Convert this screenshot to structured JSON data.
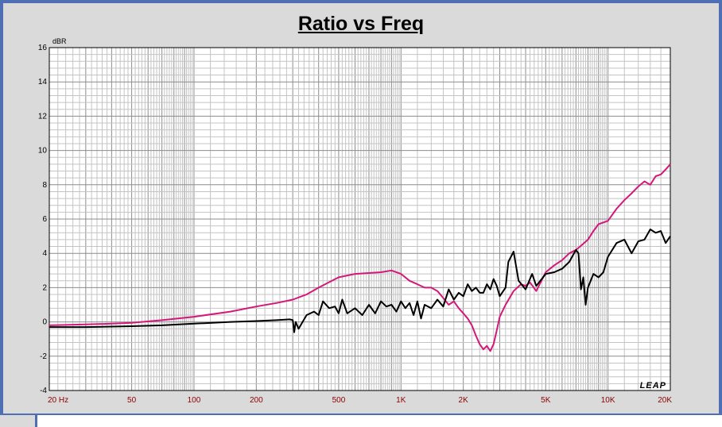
{
  "chart_data": {
    "type": "line",
    "title": "Ratio vs Freq",
    "ylabel": "dBR",
    "xlabel": "",
    "x_scale": "log",
    "xlim": [
      20,
      20000
    ],
    "ylim": [
      -4,
      16
    ],
    "grid": true,
    "brand": "LEAP",
    "y_ticks": [
      "16",
      "14",
      "12",
      "10",
      "8",
      "6",
      "4",
      "2",
      "0",
      "-2",
      "-4"
    ],
    "x_ticks": [
      {
        "value": 20,
        "label": "20  Hz"
      },
      {
        "value": 50,
        "label": "50"
      },
      {
        "value": 100,
        "label": "100"
      },
      {
        "value": 200,
        "label": "200"
      },
      {
        "value": 500,
        "label": "500"
      },
      {
        "value": 1000,
        "label": "1K"
      },
      {
        "value": 2000,
        "label": "2K"
      },
      {
        "value": 5000,
        "label": "5K"
      },
      {
        "value": 10000,
        "label": "10K"
      },
      {
        "value": 20000,
        "label": "20K"
      }
    ],
    "series": [
      {
        "color": "#d4187a",
        "x": [
          20,
          30,
          40,
          50,
          70,
          100,
          150,
          200,
          250,
          300,
          350,
          400,
          500,
          600,
          700,
          800,
          900,
          1000,
          1100,
          1200,
          1300,
          1400,
          1500,
          1600,
          1700,
          1800,
          1900,
          2000,
          2100,
          2200,
          2300,
          2400,
          2500,
          2600,
          2700,
          2800,
          2900,
          3000,
          3200,
          3500,
          3800,
          4000,
          4200,
          4500,
          5000,
          5500,
          6000,
          6500,
          7000,
          7500,
          8000,
          8500,
          9000,
          10000,
          11000,
          12000,
          13000,
          14000,
          15000,
          16000,
          17000,
          18000,
          19000,
          20000
        ],
        "y": [
          -0.2,
          -0.15,
          -0.1,
          -0.05,
          0.1,
          0.3,
          0.6,
          0.9,
          1.1,
          1.3,
          1.6,
          2.0,
          2.6,
          2.8,
          2.85,
          2.9,
          3.0,
          2.8,
          2.4,
          2.2,
          2.0,
          2.0,
          1.8,
          1.4,
          1.0,
          1.2,
          0.8,
          0.5,
          0.2,
          -0.2,
          -0.8,
          -1.3,
          -1.6,
          -1.4,
          -1.7,
          -1.3,
          -0.5,
          0.3,
          1.0,
          1.8,
          2.2,
          2.1,
          2.3,
          1.8,
          2.9,
          3.3,
          3.6,
          4.0,
          4.2,
          4.5,
          4.8,
          5.3,
          5.7,
          5.9,
          6.6,
          7.1,
          7.5,
          7.9,
          8.2,
          8.0,
          8.5,
          8.6,
          8.9,
          9.2
        ]
      },
      {
        "color": "#000000",
        "x": [
          20,
          30,
          50,
          70,
          100,
          150,
          200,
          250,
          290,
          300,
          305,
          310,
          320,
          350,
          380,
          400,
          420,
          450,
          480,
          500,
          520,
          550,
          600,
          650,
          700,
          750,
          800,
          850,
          900,
          950,
          1000,
          1050,
          1100,
          1150,
          1200,
          1250,
          1300,
          1400,
          1500,
          1600,
          1700,
          1800,
          1900,
          2000,
          2100,
          2200,
          2300,
          2400,
          2500,
          2600,
          2700,
          2800,
          2900,
          3000,
          3200,
          3300,
          3500,
          3700,
          4000,
          4300,
          4500,
          5000,
          5500,
          6000,
          6500,
          7000,
          7200,
          7400,
          7600,
          7800,
          8000,
          8500,
          9000,
          9500,
          10000,
          11000,
          12000,
          13000,
          14000,
          15000,
          16000,
          17000,
          18000,
          19000,
          20000
        ],
        "y": [
          -0.3,
          -0.3,
          -0.25,
          -0.2,
          -0.1,
          0.0,
          0.05,
          0.1,
          0.15,
          0.1,
          -0.6,
          0.0,
          -0.4,
          0.4,
          0.6,
          0.4,
          1.2,
          0.8,
          0.9,
          0.5,
          1.3,
          0.5,
          0.8,
          0.4,
          1.0,
          0.5,
          1.2,
          0.9,
          1.0,
          0.6,
          1.2,
          0.8,
          1.1,
          0.4,
          1.2,
          0.2,
          1.0,
          0.8,
          1.3,
          0.9,
          1.9,
          1.3,
          1.7,
          1.5,
          2.2,
          1.8,
          2.0,
          1.7,
          1.7,
          2.2,
          1.9,
          2.5,
          2.1,
          1.5,
          2.0,
          3.5,
          4.1,
          2.4,
          1.9,
          2.8,
          2.1,
          2.8,
          2.9,
          3.1,
          3.5,
          4.2,
          4.0,
          1.9,
          2.6,
          1.0,
          2.0,
          2.8,
          2.6,
          2.9,
          3.8,
          4.6,
          4.8,
          4.0,
          4.7,
          4.8,
          5.4,
          5.2,
          5.3,
          4.6,
          5.0
        ]
      }
    ]
  }
}
